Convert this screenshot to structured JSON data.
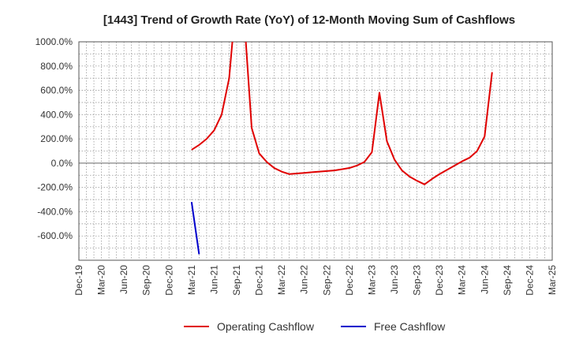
{
  "chart_data": {
    "type": "line",
    "title": "[1443]  Trend of Growth Rate (YoY) of 12-Month Moving Sum of Cashflows",
    "xlabel": "",
    "ylabel": "",
    "ylim": [
      -800,
      1000
    ],
    "y_ticks": [
      1000,
      800,
      600,
      400,
      200,
      0,
      -200,
      -400,
      -600
    ],
    "y_tick_labels": [
      "1000.0%",
      "800.0%",
      "600.0%",
      "400.0%",
      "200.0%",
      "0.0%",
      "-200.0%",
      "-400.0%",
      "-600.0%"
    ],
    "x_tick_labels": [
      "Dec-19",
      "Mar-20",
      "Jun-20",
      "Sep-20",
      "Dec-20",
      "Mar-21",
      "Jun-21",
      "Sep-21",
      "Dec-21",
      "Mar-22",
      "Jun-22",
      "Sep-22",
      "Dec-22",
      "Mar-23",
      "Jun-23",
      "Sep-23",
      "Dec-23",
      "Mar-24",
      "Jun-24",
      "Sep-24",
      "Dec-24",
      "Mar-25"
    ],
    "x_range": [
      "2019-12",
      "2025-03"
    ],
    "grid": true,
    "legend_position": "bottom-center",
    "series": [
      {
        "name": "Operating Cashflow",
        "color": "#e00000",
        "points": [
          [
            "2021-03",
            110
          ],
          [
            "2021-04",
            150
          ],
          [
            "2021-05",
            200
          ],
          [
            "2021-06",
            270
          ],
          [
            "2021-07",
            400
          ],
          [
            "2021-08",
            700
          ],
          [
            "2021-09",
            1400
          ],
          [
            "2021-10",
            1200
          ],
          [
            "2021-11",
            290
          ],
          [
            "2021-12",
            80
          ],
          [
            "2022-01",
            10
          ],
          [
            "2022-02",
            -40
          ],
          [
            "2022-03",
            -70
          ],
          [
            "2022-04",
            -90
          ],
          [
            "2022-05",
            -85
          ],
          [
            "2022-06",
            -80
          ],
          [
            "2022-07",
            -75
          ],
          [
            "2022-08",
            -70
          ],
          [
            "2022-09",
            -65
          ],
          [
            "2022-10",
            -60
          ],
          [
            "2022-11",
            -50
          ],
          [
            "2022-12",
            -40
          ],
          [
            "2023-01",
            -20
          ],
          [
            "2023-02",
            10
          ],
          [
            "2023-03",
            90
          ],
          [
            "2023-04",
            580
          ],
          [
            "2023-05",
            180
          ],
          [
            "2023-06",
            30
          ],
          [
            "2023-07",
            -60
          ],
          [
            "2023-08",
            -110
          ],
          [
            "2023-09",
            -145
          ],
          [
            "2023-10",
            -175
          ],
          [
            "2023-11",
            -130
          ],
          [
            "2023-12",
            -90
          ],
          [
            "2024-01",
            -55
          ],
          [
            "2024-02",
            -20
          ],
          [
            "2024-03",
            15
          ],
          [
            "2024-04",
            45
          ],
          [
            "2024-05",
            100
          ],
          [
            "2024-06",
            220
          ],
          [
            "2024-07",
            750
          ]
        ]
      },
      {
        "name": "Free Cashflow",
        "color": "#0000cc",
        "points": [
          [
            "2021-03",
            -320
          ],
          [
            "2021-04",
            -750
          ]
        ]
      }
    ]
  }
}
